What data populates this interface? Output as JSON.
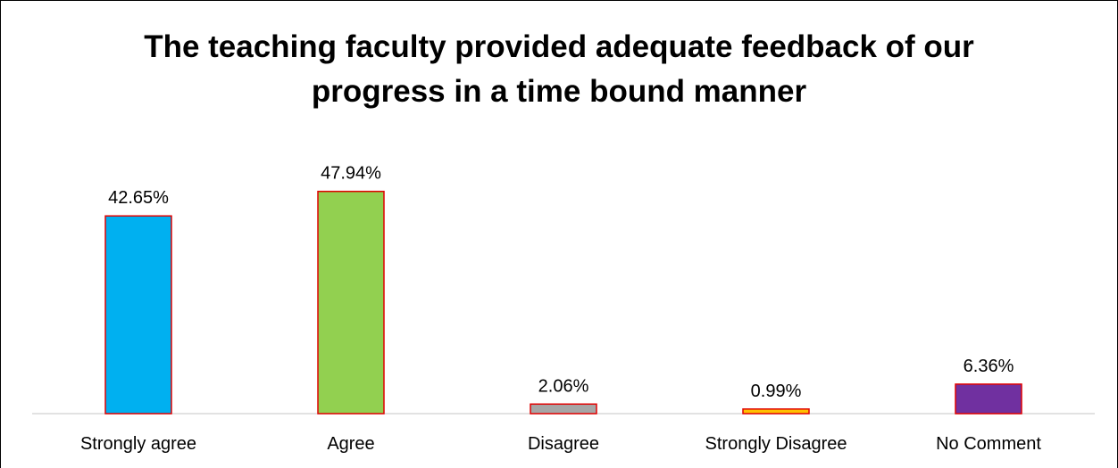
{
  "chart_data": {
    "type": "bar",
    "title": "The teaching faculty provided adequate feedback of our progress in a time bound manner",
    "categories": [
      "Strongly agree",
      "Agree",
      "Disagree",
      "Strongly Disagree",
      "No Comment"
    ],
    "values": [
      42.65,
      47.94,
      2.06,
      0.99,
      6.36
    ],
    "value_labels": [
      "42.65%",
      "47.94%",
      "2.06%",
      "0.99%",
      "6.36%"
    ],
    "colors": [
      "#00b0f0",
      "#92d050",
      "#a6a6a6",
      "#ffc000",
      "#7030a0"
    ],
    "edge_color": "#e00000"
  }
}
